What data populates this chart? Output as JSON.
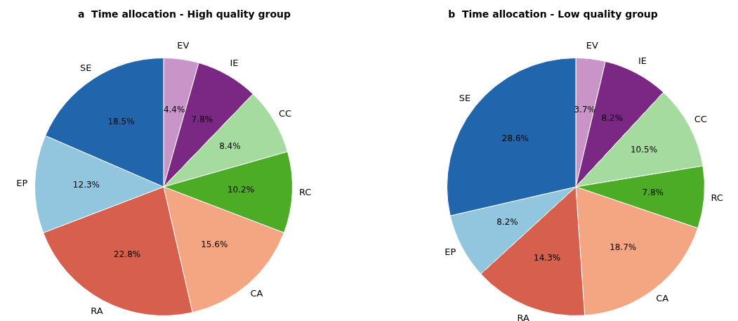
{
  "chart_data": [
    {
      "type": "pie",
      "title": "a  Time allocation - High quality group",
      "categories": [
        "EV",
        "IE",
        "CC",
        "RC",
        "CA",
        "RA",
        "EP",
        "SE"
      ],
      "values": [
        4.4,
        7.8,
        8.4,
        10.2,
        15.6,
        22.8,
        12.3,
        18.5
      ],
      "value_labels": [
        "4.4%",
        "7.8%",
        "8.4%",
        "10.2%",
        "15.6%",
        "22.8%",
        "12.3%",
        "18.5%"
      ],
      "colors": [
        "#c994c7",
        "#7a2884",
        "#a6dba0",
        "#4dac26",
        "#f4a582",
        "#d6604d",
        "#92c5de",
        "#2166ac"
      ],
      "legend": false
    },
    {
      "type": "pie",
      "title": "b  Time allocation - Low quality group",
      "categories": [
        "EV",
        "IE",
        "CC",
        "RC",
        "CA",
        "RA",
        "EP",
        "SE"
      ],
      "values": [
        3.7,
        8.2,
        10.5,
        7.8,
        18.7,
        14.3,
        8.2,
        28.6
      ],
      "value_labels": [
        "3.7%",
        "8.2%",
        "10.5%",
        "7.8%",
        "18.7%",
        "14.3%",
        "8.2%",
        "28.6%"
      ],
      "colors": [
        "#c994c7",
        "#7a2884",
        "#a6dba0",
        "#4dac26",
        "#f4a582",
        "#d6604d",
        "#92c5de",
        "#2166ac"
      ],
      "legend": false
    }
  ]
}
